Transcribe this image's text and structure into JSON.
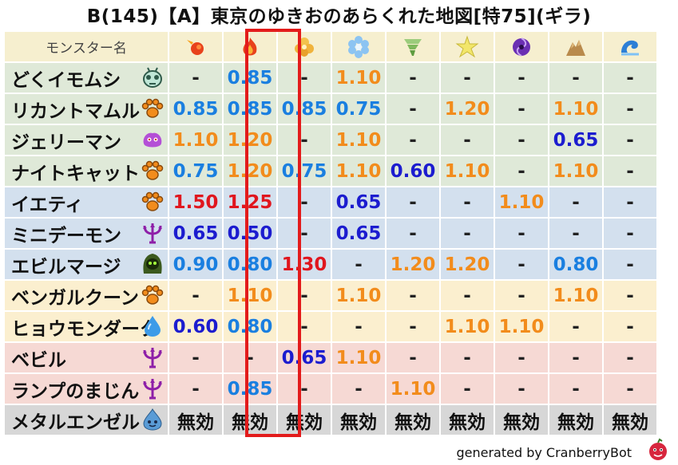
{
  "title": "B(145)【A】東京のゆきおのあらくれた地図[特75](ギラ)",
  "header": {
    "name_label": "モンスター名",
    "element_icons": [
      "fire-orb-icon",
      "fire-flame-icon",
      "wind-leaf-icon",
      "ice-crystal-icon",
      "tornado-icon",
      "lightning-icon",
      "dark-swirl-icon",
      "earth-rock-icon",
      "water-wave-icon"
    ]
  },
  "rows": [
    {
      "name": "どくイモムシ",
      "icon": "insect-face-icon",
      "bg": "green",
      "cells": [
        {
          "v": "-",
          "c": "gray"
        },
        {
          "v": "0.85",
          "c": "blue"
        },
        {
          "v": "-",
          "c": "gray"
        },
        {
          "v": "1.10",
          "c": "orange"
        },
        {
          "v": "-",
          "c": "gray"
        },
        {
          "v": "-",
          "c": "gray"
        },
        {
          "v": "-",
          "c": "gray"
        },
        {
          "v": "-",
          "c": "gray"
        },
        {
          "v": "-",
          "c": "gray"
        }
      ]
    },
    {
      "name": "リカントマムル",
      "icon": "paw-icon",
      "bg": "green",
      "cells": [
        {
          "v": "0.85",
          "c": "blue"
        },
        {
          "v": "0.85",
          "c": "blue"
        },
        {
          "v": "0.85",
          "c": "blue"
        },
        {
          "v": "0.75",
          "c": "blue"
        },
        {
          "v": "-",
          "c": "gray"
        },
        {
          "v": "1.20",
          "c": "orange"
        },
        {
          "v": "-",
          "c": "gray"
        },
        {
          "v": "1.10",
          "c": "orange"
        },
        {
          "v": "-",
          "c": "gray"
        }
      ]
    },
    {
      "name": "ジェリーマン",
      "icon": "slime-blob-icon",
      "bg": "green",
      "cells": [
        {
          "v": "1.10",
          "c": "orange"
        },
        {
          "v": "1.20",
          "c": "orange"
        },
        {
          "v": "-",
          "c": "gray"
        },
        {
          "v": "1.10",
          "c": "orange"
        },
        {
          "v": "-",
          "c": "gray"
        },
        {
          "v": "-",
          "c": "gray"
        },
        {
          "v": "-",
          "c": "gray"
        },
        {
          "v": "0.65",
          "c": "navy"
        },
        {
          "v": "-",
          "c": "gray"
        }
      ]
    },
    {
      "name": "ナイトキャット",
      "icon": "paw-icon",
      "bg": "green",
      "cells": [
        {
          "v": "0.75",
          "c": "blue"
        },
        {
          "v": "1.20",
          "c": "orange"
        },
        {
          "v": "0.75",
          "c": "blue"
        },
        {
          "v": "1.10",
          "c": "orange"
        },
        {
          "v": "0.60",
          "c": "navy"
        },
        {
          "v": "1.10",
          "c": "orange"
        },
        {
          "v": "-",
          "c": "gray"
        },
        {
          "v": "1.10",
          "c": "orange"
        },
        {
          "v": "-",
          "c": "gray"
        }
      ]
    },
    {
      "name": "イエティ",
      "icon": "paw-icon",
      "bg": "blue",
      "cells": [
        {
          "v": "1.50",
          "c": "red"
        },
        {
          "v": "1.25",
          "c": "red"
        },
        {
          "v": "-",
          "c": "gray"
        },
        {
          "v": "0.65",
          "c": "navy"
        },
        {
          "v": "-",
          "c": "gray"
        },
        {
          "v": "-",
          "c": "gray"
        },
        {
          "v": "1.10",
          "c": "orange"
        },
        {
          "v": "-",
          "c": "gray"
        },
        {
          "v": "-",
          "c": "gray"
        }
      ]
    },
    {
      "name": "ミニデーモン",
      "icon": "demon-trident-icon",
      "bg": "blue",
      "cells": [
        {
          "v": "0.65",
          "c": "navy"
        },
        {
          "v": "0.50",
          "c": "navy"
        },
        {
          "v": "-",
          "c": "gray"
        },
        {
          "v": "0.65",
          "c": "navy"
        },
        {
          "v": "-",
          "c": "gray"
        },
        {
          "v": "-",
          "c": "gray"
        },
        {
          "v": "-",
          "c": "gray"
        },
        {
          "v": "-",
          "c": "gray"
        },
        {
          "v": "-",
          "c": "gray"
        }
      ]
    },
    {
      "name": "エビルマージ",
      "icon": "hooded-mage-icon",
      "bg": "blue",
      "cells": [
        {
          "v": "0.90",
          "c": "blue"
        },
        {
          "v": "0.80",
          "c": "blue"
        },
        {
          "v": "1.30",
          "c": "red"
        },
        {
          "v": "-",
          "c": "gray"
        },
        {
          "v": "1.20",
          "c": "orange"
        },
        {
          "v": "1.20",
          "c": "orange"
        },
        {
          "v": "-",
          "c": "gray"
        },
        {
          "v": "0.80",
          "c": "blue"
        },
        {
          "v": "-",
          "c": "gray"
        }
      ]
    },
    {
      "name": "ベンガルクーン",
      "icon": "paw-icon",
      "bg": "yellow",
      "cells": [
        {
          "v": "-",
          "c": "gray"
        },
        {
          "v": "1.10",
          "c": "orange"
        },
        {
          "v": "-",
          "c": "gray"
        },
        {
          "v": "1.10",
          "c": "orange"
        },
        {
          "v": "-",
          "c": "gray"
        },
        {
          "v": "-",
          "c": "gray"
        },
        {
          "v": "-",
          "c": "gray"
        },
        {
          "v": "1.10",
          "c": "orange"
        },
        {
          "v": "-",
          "c": "gray"
        }
      ]
    },
    {
      "name": "ヒョウモンダーク",
      "icon": "water-drop-icon",
      "bg": "yellow",
      "cells": [
        {
          "v": "0.60",
          "c": "navy"
        },
        {
          "v": "0.80",
          "c": "blue"
        },
        {
          "v": "-",
          "c": "gray"
        },
        {
          "v": "-",
          "c": "gray"
        },
        {
          "v": "-",
          "c": "gray"
        },
        {
          "v": "1.10",
          "c": "orange"
        },
        {
          "v": "1.10",
          "c": "orange"
        },
        {
          "v": "-",
          "c": "gray"
        },
        {
          "v": "-",
          "c": "gray"
        }
      ]
    },
    {
      "name": "ベビル",
      "icon": "demon-trident-icon",
      "bg": "pink",
      "cells": [
        {
          "v": "-",
          "c": "gray"
        },
        {
          "v": "-",
          "c": "gray"
        },
        {
          "v": "0.65",
          "c": "navy"
        },
        {
          "v": "1.10",
          "c": "orange"
        },
        {
          "v": "-",
          "c": "gray"
        },
        {
          "v": "-",
          "c": "gray"
        },
        {
          "v": "-",
          "c": "gray"
        },
        {
          "v": "-",
          "c": "gray"
        },
        {
          "v": "-",
          "c": "gray"
        }
      ]
    },
    {
      "name": "ランプのまじん",
      "icon": "demon-trident-icon",
      "bg": "pink",
      "cells": [
        {
          "v": "-",
          "c": "gray"
        },
        {
          "v": "0.85",
          "c": "blue"
        },
        {
          "v": "-",
          "c": "gray"
        },
        {
          "v": "-",
          "c": "gray"
        },
        {
          "v": "1.10",
          "c": "orange"
        },
        {
          "v": "-",
          "c": "gray"
        },
        {
          "v": "-",
          "c": "gray"
        },
        {
          "v": "-",
          "c": "gray"
        },
        {
          "v": "-",
          "c": "gray"
        }
      ]
    },
    {
      "name": "メタルエンゼル",
      "icon": "metal-slime-icon",
      "bg": "gray",
      "cells": [
        {
          "v": "無効",
          "c": "dark"
        },
        {
          "v": "無効",
          "c": "dark"
        },
        {
          "v": "無効",
          "c": "dark"
        },
        {
          "v": "無効",
          "c": "dark"
        },
        {
          "v": "無効",
          "c": "dark"
        },
        {
          "v": "無効",
          "c": "dark"
        },
        {
          "v": "無効",
          "c": "dark"
        },
        {
          "v": "無効",
          "c": "dark"
        },
        {
          "v": "無効",
          "c": "dark"
        }
      ]
    }
  ],
  "footer": {
    "text": "generated by CranberryBot",
    "icon": "cranberry-bot-icon"
  },
  "colors": {
    "highlight": "#e31b1b",
    "orange": "#f28c1c",
    "blue": "#1a7fe0",
    "navy": "#1c1ccf",
    "red": "#e0161e"
  }
}
